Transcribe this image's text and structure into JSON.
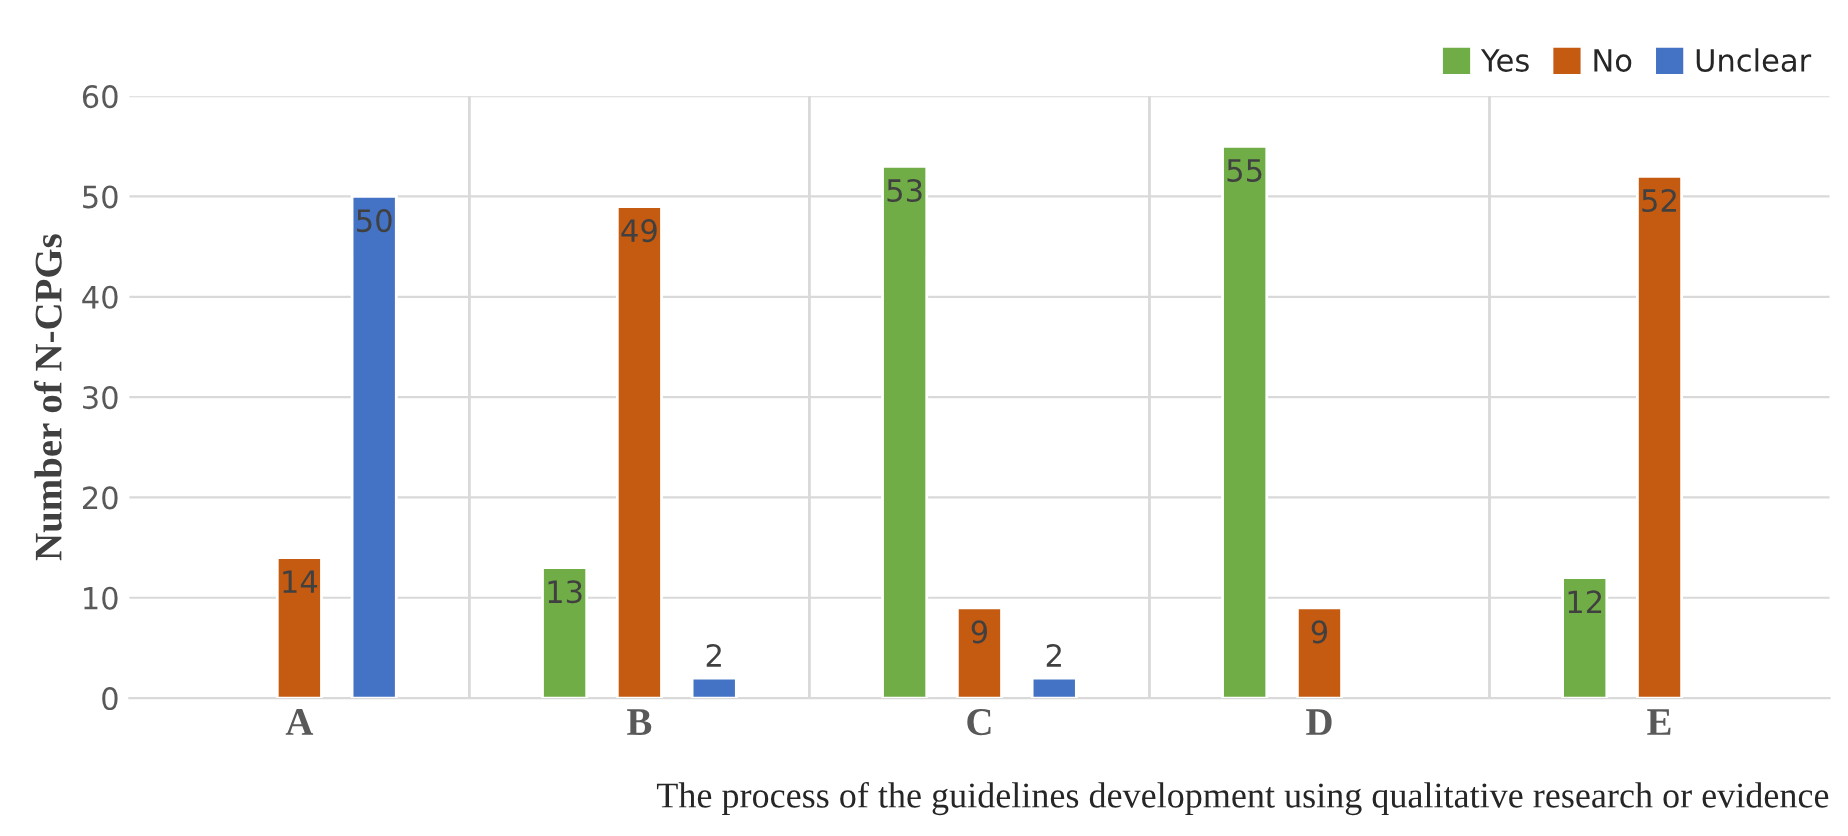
{
  "chart_data": {
    "type": "bar",
    "categories": [
      "A",
      "B",
      "C",
      "D",
      "E"
    ],
    "series": [
      {
        "name": "Yes",
        "color": "#70ad47",
        "values": [
          null,
          13,
          53,
          55,
          12
        ]
      },
      {
        "name": "No",
        "color": "#c55a11",
        "values": [
          14,
          49,
          9,
          9,
          52
        ]
      },
      {
        "name": "Unclear",
        "color": "#4472c4",
        "values": [
          50,
          2,
          2,
          null,
          null
        ]
      }
    ],
    "xlabel": "The process of the guidelines development using qualitative research or evidence",
    "ylabel": "Number of N-CPGs",
    "ylim": [
      0,
      60
    ],
    "yticks": [
      0,
      10,
      20,
      30,
      40,
      50,
      60
    ],
    "grid": true,
    "legend": "top right",
    "data_labels": true
  }
}
